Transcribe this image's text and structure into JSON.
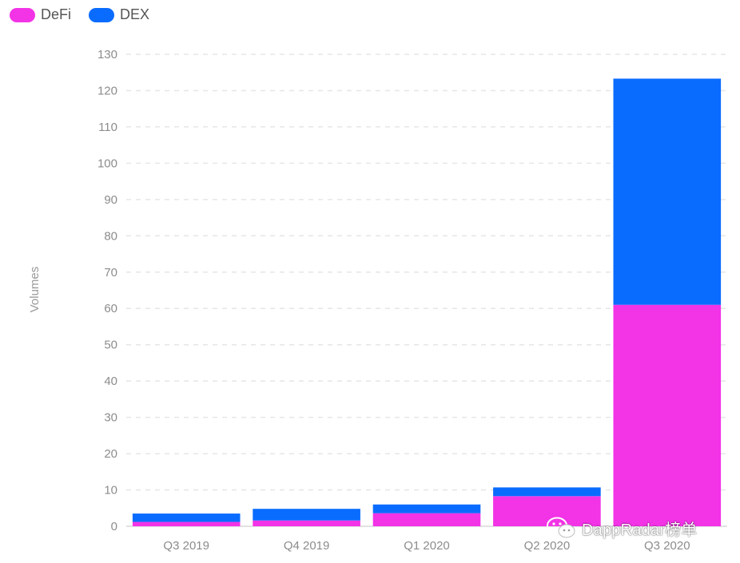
{
  "legend": {
    "items": [
      {
        "label": "DeFi",
        "color": "#f233e6"
      },
      {
        "label": "DEX",
        "color": "#0a6cff"
      }
    ]
  },
  "watermark": {
    "text": "DappRadar榜单",
    "icon": "wechat-icon"
  },
  "chart_data": {
    "type": "bar",
    "stacked": true,
    "categories": [
      "Q3 2019",
      "Q4 2019",
      "Q1 2020",
      "Q2 2020",
      "Q3 2020"
    ],
    "series": [
      {
        "name": "DeFi",
        "color": "#f233e6",
        "values": [
          1.2,
          1.6,
          3.6,
          8.3,
          61
        ]
      },
      {
        "name": "DEX",
        "color": "#0a6cff",
        "values": [
          2.3,
          3.2,
          2.4,
          2.4,
          62.3
        ]
      }
    ],
    "ylabel": "Volumes",
    "xlabel": "",
    "ylim": [
      0,
      130
    ],
    "yticks": [
      0,
      10,
      20,
      30,
      40,
      50,
      60,
      70,
      80,
      90,
      100,
      110,
      120,
      130
    ],
    "grid": true,
    "legend_position": "top-left"
  }
}
